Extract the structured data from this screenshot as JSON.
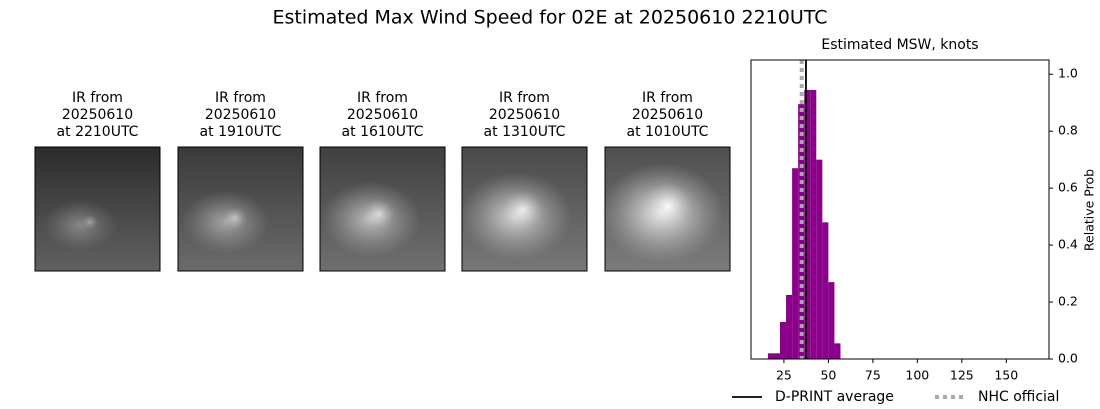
{
  "title": "Estimated Max Wind Speed for 02E at 20250610 2210UTC",
  "panels": [
    {
      "label": [
        "IR from",
        "20250610",
        "at 2210UTC"
      ]
    },
    {
      "label": [
        "IR from",
        "20250610",
        "at 1910UTC"
      ]
    },
    {
      "label": [
        "IR from",
        "20250610",
        "at 1610UTC"
      ]
    },
    {
      "label": [
        "IR from",
        "20250610",
        "at 1310UTC"
      ]
    },
    {
      "label": [
        "IR from",
        "20250610",
        "at 1010UTC"
      ]
    }
  ],
  "chart_data": {
    "type": "histogram",
    "title": "Estimated MSW, knots",
    "y_label": "Relative Prob",
    "bins": [
      16,
      19.4,
      22.8,
      26.2,
      29.6,
      33,
      36.4,
      39.8,
      43.2,
      46.6,
      50,
      53.4,
      56.8
    ],
    "values": [
      0.02,
      0.02,
      0.13,
      0.225,
      0.67,
      0.895,
      0.945,
      0.945,
      0.7,
      0.48,
      0.27,
      0.055
    ],
    "color": "#8b008b",
    "xlim": [
      6.5,
      174
    ],
    "xticks": [
      25,
      50,
      75,
      100,
      125,
      150
    ],
    "ylim": [
      0,
      1.05
    ],
    "yticks": [
      {
        "value": 0,
        "label": "0.0"
      },
      0.2,
      0.4,
      0.6,
      0.8,
      {
        "value": 1,
        "label": "1.0"
      }
    ],
    "lines": [
      {
        "name": "D-PRINT average",
        "value": 37.4,
        "color": "#000000",
        "style": "solid"
      },
      {
        "name": "NHC official",
        "value": 35,
        "color": "#a9a9a9",
        "style": "dotted"
      }
    ]
  }
}
